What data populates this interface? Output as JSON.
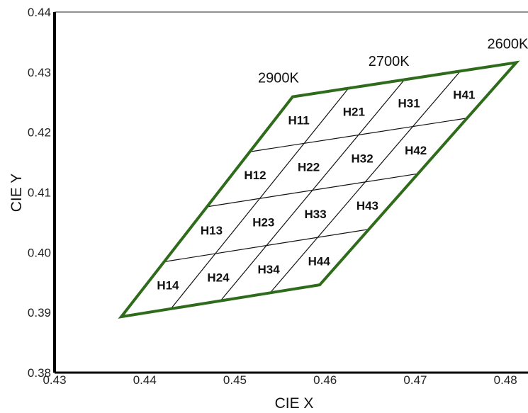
{
  "chart_data": {
    "type": "scatter",
    "xlabel": "CIE X",
    "ylabel": "CIE Y",
    "xlim": [
      0.43,
      0.4825
    ],
    "ylim": [
      0.38,
      0.44
    ],
    "x_ticks": [
      "0.43",
      "0.44",
      "0.45",
      "0.46",
      "0.47",
      "0.48"
    ],
    "y_ticks": [
      "0.38",
      "0.39",
      "0.40",
      "0.41",
      "0.42",
      "0.43",
      "0.44"
    ],
    "grid": false,
    "boundary_color": "#2e6b1a",
    "corners": {
      "top_left": [
        0.4564,
        0.4259
      ],
      "top_right": [
        0.4812,
        0.4316
      ],
      "bottom_right": [
        0.4594,
        0.3946
      ],
      "bottom_left": [
        0.4374,
        0.3893
      ]
    },
    "cct_labels": [
      {
        "text": "2900K",
        "x": 0.4564,
        "y": 0.4259
      },
      {
        "text": "2700K",
        "x": 0.4688,
        "y": 0.4287
      },
      {
        "text": "2600K",
        "x": 0.4812,
        "y": 0.4316
      }
    ],
    "bins": [
      [
        "H11",
        "H21",
        "H31",
        "H41"
      ],
      [
        "H12",
        "H22",
        "H32",
        "H42"
      ],
      [
        "H13",
        "H23",
        "H33",
        "H43"
      ],
      [
        "H14",
        "H24",
        "H34",
        "H44"
      ]
    ]
  }
}
